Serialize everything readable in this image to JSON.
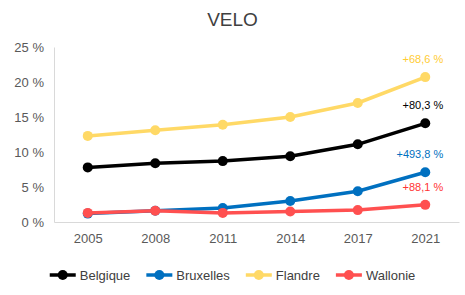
{
  "chart_data": {
    "type": "line",
    "title": "VELO",
    "categories": [
      "2005",
      "2008",
      "2011",
      "2014",
      "2017",
      "2021"
    ],
    "series": [
      {
        "name": "Belgique",
        "color": "#000000",
        "values": [
          7.8,
          8.4,
          8.7,
          9.4,
          11.1,
          14.1
        ],
        "annotation": "+80,3 %"
      },
      {
        "name": "Bruxelles",
        "color": "#0070c0",
        "values": [
          1.2,
          1.6,
          2.0,
          3.0,
          4.4,
          7.1
        ],
        "annotation": "+493,8 %"
      },
      {
        "name": "Flandre",
        "color": "#ffd966",
        "values": [
          12.3,
          13.1,
          13.9,
          15.0,
          17.0,
          20.7
        ],
        "annotation": "+68,6 %"
      },
      {
        "name": "Wallonie",
        "color": "#ff5050",
        "values": [
          1.3,
          1.6,
          1.3,
          1.5,
          1.7,
          2.45
        ],
        "annotation": "+88,1 %"
      }
    ],
    "ylim": [
      0,
      25
    ],
    "yticks": [
      {
        "value": 0,
        "label": "0 %"
      },
      {
        "value": 5,
        "label": "5 %"
      },
      {
        "value": 10,
        "label": "10 %"
      },
      {
        "value": 15,
        "label": "15 %"
      },
      {
        "value": 20,
        "label": "20 %"
      },
      {
        "value": 25,
        "label": "25 %"
      }
    ],
    "grid": false,
    "legend": "bottom",
    "marker": "circle",
    "line_style": "solid"
  }
}
